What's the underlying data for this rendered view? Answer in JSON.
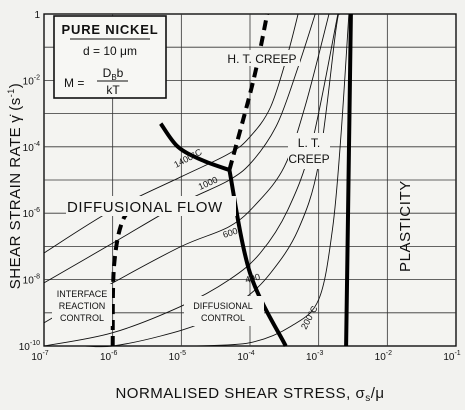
{
  "chart_data": {
    "type": "deformation-mechanism-map",
    "title_box": {
      "line1": "PURE NICKEL",
      "line2": "d = 10 μm",
      "line3_lhs": "M =",
      "line3_num": "D",
      "line3_num_sub": "B",
      "line3_num_rest": "b",
      "line3_den": "kT"
    },
    "xlabel": "NORMALISED SHEAR STRESS, σ",
    "xlabel_sub": "s",
    "xlabel_tail": "/μ",
    "ylabel_main": "SHEAR STRAIN RATE",
    "ylabel_sym": "γ̇",
    "ylabel_unit": "(s",
    "ylabel_unit_exp": "-1",
    "ylabel_unit_close": ")",
    "x_ticks": [
      {
        "base": "10",
        "exp": "-7",
        "value": -7
      },
      {
        "base": "10",
        "exp": "-6",
        "value": -6
      },
      {
        "base": "10",
        "exp": "-5",
        "value": -5
      },
      {
        "base": "10",
        "exp": "-4",
        "value": -4
      },
      {
        "base": "10",
        "exp": "-3",
        "value": -3
      },
      {
        "base": "10",
        "exp": "-2",
        "value": -2
      },
      {
        "base": "10",
        "exp": "-1",
        "value": -1
      }
    ],
    "y_ticks": [
      {
        "base": "1",
        "exp": "",
        "value": 0
      },
      {
        "base": "10",
        "exp": "-2",
        "value": -2
      },
      {
        "base": "10",
        "exp": "-4",
        "value": -4
      },
      {
        "base": "10",
        "exp": "-6",
        "value": -6
      },
      {
        "base": "10",
        "exp": "-8",
        "value": -8
      },
      {
        "base": "10",
        "exp": "-10",
        "value": -10
      }
    ],
    "x_range_log10": [
      -7,
      -1
    ],
    "y_range_log10": [
      -10,
      0
    ],
    "grid": true,
    "region_labels": {
      "ht_creep": "H. T. CREEP",
      "lt_creep_1": "L. T.",
      "lt_creep_2": "CREEP",
      "diffusional_flow": "DIFFUSIONAL FLOW",
      "plasticity": "PLASTICITY",
      "interface_1": "INTERFACE",
      "interface_2": "REACTION",
      "interface_3": "CONTROL",
      "diff_control_1": "DIFFUSIONAL",
      "diff_control_2": "CONTROL"
    },
    "temperature_labels": [
      "1400°C",
      "1000",
      "600",
      "400",
      "200°C"
    ],
    "isotherms": [
      {
        "label": "1400°C",
        "points": [
          [
            -7,
            -7.2
          ],
          [
            -6,
            -5.9
          ],
          [
            -5,
            -4.9
          ],
          [
            -4.3,
            -4.2
          ],
          [
            -4,
            -3.7
          ],
          [
            -3.7,
            -2.8
          ],
          [
            -3.45,
            -1.2
          ],
          [
            -3.3,
            0
          ]
        ]
      },
      {
        "label": "1000",
        "points": [
          [
            -7,
            -8.1
          ],
          [
            -6,
            -6.9
          ],
          [
            -5,
            -5.7
          ],
          [
            -4.3,
            -5.0
          ],
          [
            -3.95,
            -4.4
          ],
          [
            -3.6,
            -3.3
          ],
          [
            -3.3,
            -1.6
          ],
          [
            -3.05,
            0
          ]
        ]
      },
      {
        "label": "600",
        "points": [
          [
            -7,
            -9.3
          ],
          [
            -6,
            -8.1
          ],
          [
            -5,
            -7.0
          ],
          [
            -4.3,
            -6.4
          ],
          [
            -3.9,
            -5.7
          ],
          [
            -3.5,
            -4.6
          ],
          [
            -3.2,
            -2.8
          ],
          [
            -2.85,
            0
          ]
        ]
      },
      {
        "label": "400",
        "points": [
          [
            -7,
            -10
          ],
          [
            -6,
            -9.6
          ],
          [
            -5,
            -8.8
          ],
          [
            -4.3,
            -8.0
          ],
          [
            -3.85,
            -7.2
          ],
          [
            -3.45,
            -5.9
          ],
          [
            -3.1,
            -3.9
          ],
          [
            -2.72,
            0
          ]
        ]
      },
      {
        "label": "200°C",
        "points": [
          [
            -4.8,
            -10
          ],
          [
            -4,
            -9.9
          ],
          [
            -3.4,
            -9.4
          ],
          [
            -3,
            -8.6
          ],
          [
            -2.8,
            -6.5
          ],
          [
            -2.68,
            -3.8
          ],
          [
            -2.56,
            0
          ]
        ]
      },
      {
        "label": "",
        "points": [
          [
            -6.4,
            -10
          ],
          [
            -6,
            -10
          ],
          [
            -5.3,
            -9.7
          ],
          [
            -4.7,
            -9.3
          ],
          [
            -4.1,
            -8.6
          ],
          [
            -3.7,
            -7.8
          ],
          [
            -3.3,
            -6.5
          ],
          [
            -3.0,
            -4.5
          ],
          [
            -2.75,
            -0.5
          ],
          [
            -2.7,
            0
          ]
        ]
      }
    ],
    "boundaries": {
      "solid": [
        [
          [
            -5.3,
            -3.3
          ],
          [
            -5.05,
            -4.0
          ],
          [
            -4.7,
            -4.4
          ],
          [
            -4.3,
            -4.7
          ]
        ],
        [
          [
            -4.3,
            -4.7
          ],
          [
            -4.0,
            -7.8
          ],
          [
            -3.48,
            -10
          ]
        ],
        [
          [
            -2.6,
            -10
          ],
          [
            -2.56,
            -4.2
          ],
          [
            -2.53,
            0
          ]
        ]
      ],
      "dashed": [
        [
          [
            -4.3,
            -4.7
          ],
          [
            -3.95,
            -2.0
          ],
          [
            -3.75,
            0
          ]
        ],
        [
          [
            -6.0,
            -10
          ],
          [
            -5.98,
            -7.6
          ],
          [
            -5.85,
            -6.2
          ],
          [
            -5.6,
            -5.7
          ]
        ]
      ]
    }
  }
}
